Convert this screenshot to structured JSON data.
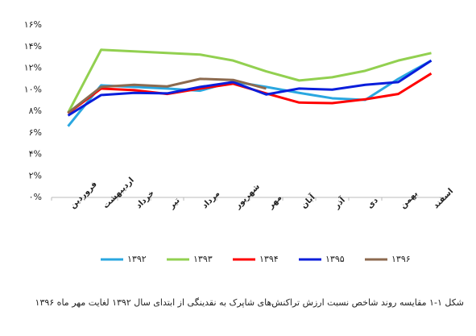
{
  "chart_data": {
    "type": "line",
    "title": "شکل ۱-۱ مقایسه روند شاخص نسبت ارزش تراکنش‌های شاپرک به نقدینگی از ابتدای سال ۱۳۹۲ لغایت مهر ماه ۱۳۹۶",
    "categories": [
      "فروردین",
      "اردیبهشت",
      "خرداد",
      "تیر",
      "مرداد",
      "شهریور",
      "مهر",
      "آبان",
      "آذر",
      "دی",
      "بهمن",
      "اسفند"
    ],
    "series": [
      {
        "name": "۱۳۹۲",
        "color": "#2aa7e0",
        "values": [
          6.6,
          10.4,
          10.25,
          10.1,
          9.9,
          10.75,
          10.25,
          9.7,
          9.2,
          9.05,
          11.0,
          12.7
        ]
      },
      {
        "name": "۱۳۹۳",
        "color": "#92d050",
        "values": [
          7.85,
          13.7,
          13.55,
          13.4,
          13.25,
          12.7,
          11.7,
          10.85,
          11.15,
          11.75,
          12.7,
          13.4
        ]
      },
      {
        "name": "۱۳۹۴",
        "color": "#ff0000",
        "values": [
          7.8,
          10.1,
          9.95,
          9.6,
          10.1,
          10.55,
          9.65,
          8.8,
          8.75,
          9.1,
          9.6,
          11.5
        ]
      },
      {
        "name": "۱۳۹۵",
        "color": "#0a1edb",
        "values": [
          7.6,
          9.5,
          9.7,
          9.65,
          10.25,
          10.7,
          9.55,
          10.1,
          10.0,
          10.45,
          10.7,
          12.7
        ]
      },
      {
        "name": "۱۳۹۶",
        "color": "#8c6a4f",
        "values": [
          7.85,
          10.25,
          10.45,
          10.3,
          11.0,
          10.9,
          10.1,
          null,
          null,
          null,
          null,
          null
        ]
      }
    ],
    "ylim": [
      0,
      16
    ],
    "yticks": [
      {
        "value": 0,
        "label": "۰%"
      },
      {
        "value": 2,
        "label": "۲%"
      },
      {
        "value": 4,
        "label": "۴%"
      },
      {
        "value": 6,
        "label": "۶%"
      },
      {
        "value": 8,
        "label": "۸%"
      },
      {
        "value": 10,
        "label": "۱۰%"
      },
      {
        "value": 12,
        "label": "۱۲%"
      },
      {
        "value": 14,
        "label": "۱۴%"
      },
      {
        "value": 16,
        "label": "۱۶%"
      }
    ],
    "grid": false,
    "legend": "bottom"
  }
}
